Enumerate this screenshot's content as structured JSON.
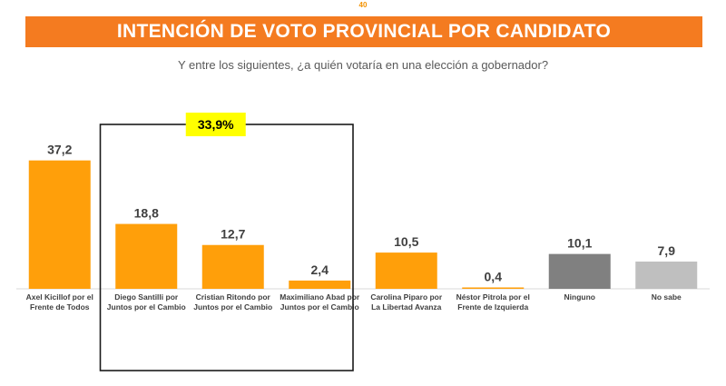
{
  "page": {
    "number": "40"
  },
  "header": {
    "title": "INTENCIÓN DE VOTO PROVINCIAL POR CANDIDATO",
    "subtitle": "Y entre los siguientes, ¿a quién votaría en una elección a gobernador?"
  },
  "chart_data": {
    "type": "bar",
    "title": "INTENCIÓN DE VOTO PROVINCIAL POR CANDIDATO",
    "subtitle": "Y entre los siguientes, ¿a quién votaría en una elección a gobernador?",
    "xlabel": "",
    "ylabel": "",
    "ylim": [
      0,
      40
    ],
    "grid": false,
    "categories": [
      [
        "Axel Kicillof por el",
        "Frente de Todos"
      ],
      [
        "Diego Santilli por",
        "Juntos por el Cambio"
      ],
      [
        "Cristian Ritondo por",
        "Juntos por el Cambio"
      ],
      [
        "Maximiliano Abad por",
        "Juntos por el Cambio"
      ],
      [
        "Carolina Piparo por",
        "La Libertad Avanza"
      ],
      [
        "Néstor Pitrola por el",
        "Frente de Izquierda"
      ],
      [
        "Ninguno"
      ],
      [
        "No sabe"
      ]
    ],
    "values": [
      37.2,
      18.8,
      12.7,
      2.4,
      10.5,
      0.4,
      10.1,
      7.9
    ],
    "value_labels": [
      "37,2",
      "18,8",
      "12,7",
      "2,4",
      "10,5",
      "0,4",
      "10,1",
      "7,9"
    ],
    "colors": [
      "#ff9f0a",
      "#ff9f0a",
      "#ff9f0a",
      "#ff9f0a",
      "#ff9f0a",
      "#ff9f0a",
      "#808080",
      "#bfbfbf"
    ],
    "annotation": {
      "text": "33,9%",
      "group": [
        1,
        2,
        3
      ],
      "background": "#ffff00"
    }
  }
}
